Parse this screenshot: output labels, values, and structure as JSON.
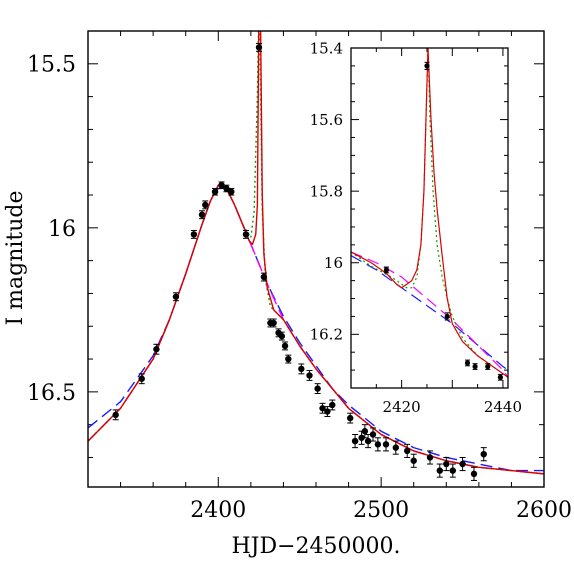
{
  "chart_data": [
    {
      "name": "main",
      "type": "scatter",
      "title": "",
      "xlabel": "HJD−2450000.",
      "ylabel": "I magnitude",
      "xlim": [
        2320,
        2600
      ],
      "ylim": [
        16.79,
        15.4
      ],
      "y_inverted": true,
      "x_ticks": [
        2400,
        2500,
        2600
      ],
      "y_ticks": [
        15.5,
        16,
        16.5
      ],
      "x_tick_labels": [
        "2400",
        "2500",
        "2600"
      ],
      "y_tick_labels": [
        "15.5",
        "16",
        "16.5"
      ],
      "grid": false,
      "legend": "none",
      "series": [
        {
          "kind": "points_with_errorbars",
          "color": "#000000",
          "points": [
            [
              2337,
              16.57,
              0.015
            ],
            [
              2353,
              16.46,
              0.015
            ],
            [
              2362,
              16.37,
              0.015
            ],
            [
              2374,
              16.21,
              0.012
            ],
            [
              2385,
              16.02,
              0.012
            ],
            [
              2390,
              15.96,
              0.012
            ],
            [
              2392,
              15.93,
              0.012
            ],
            [
              2398,
              15.89,
              0.01
            ],
            [
              2402,
              15.87,
              0.01
            ],
            [
              2405,
              15.88,
              0.01
            ],
            [
              2408,
              15.89,
              0.01
            ],
            [
              2417,
              16.02,
              0.012
            ],
            [
              2425,
              15.45,
              0.012
            ],
            [
              2428,
              16.15,
              0.012
            ],
            [
              2432,
              16.29,
              0.012
            ],
            [
              2434,
              16.29,
              0.012
            ],
            [
              2437,
              16.32,
              0.012
            ],
            [
              2439,
              16.33,
              0.012
            ],
            [
              2441,
              16.36,
              0.012
            ],
            [
              2443,
              16.4,
              0.012
            ],
            [
              2451,
              16.43,
              0.015
            ],
            [
              2456,
              16.45,
              0.015
            ],
            [
              2461,
              16.49,
              0.015
            ],
            [
              2464,
              16.55,
              0.015
            ],
            [
              2467,
              16.56,
              0.015
            ],
            [
              2470,
              16.54,
              0.015
            ],
            [
              2481,
              16.58,
              0.015
            ],
            [
              2484,
              16.65,
              0.02
            ],
            [
              2488,
              16.64,
              0.02
            ],
            [
              2490,
              16.62,
              0.02
            ],
            [
              2492,
              16.65,
              0.02
            ],
            [
              2495,
              16.63,
              0.02
            ],
            [
              2498,
              16.66,
              0.02
            ],
            [
              2503,
              16.66,
              0.02
            ],
            [
              2509,
              16.67,
              0.02
            ],
            [
              2516,
              16.68,
              0.02
            ],
            [
              2520,
              16.71,
              0.02
            ],
            [
              2530,
              16.7,
              0.02
            ],
            [
              2536,
              16.74,
              0.02
            ],
            [
              2540,
              16.72,
              0.02
            ],
            [
              2544,
              16.74,
              0.02
            ],
            [
              2550,
              16.72,
              0.02
            ],
            [
              2557,
              16.75,
              0.02
            ],
            [
              2563,
              16.69,
              0.02
            ]
          ]
        },
        {
          "kind": "model_curve_single_lens",
          "style": "dashed",
          "color": "#1a1aff",
          "x": [
            2320,
            2340,
            2360,
            2370,
            2380,
            2390,
            2395,
            2400,
            2405,
            2410,
            2415,
            2420,
            2425,
            2430,
            2440,
            2450,
            2460,
            2470,
            2480,
            2500,
            2520,
            2540,
            2560,
            2580,
            2600
          ],
          "y": [
            16.61,
            16.53,
            16.39,
            16.28,
            16.14,
            15.99,
            15.92,
            15.88,
            15.88,
            15.93,
            15.99,
            16.05,
            16.11,
            16.17,
            16.27,
            16.35,
            16.42,
            16.49,
            16.54,
            16.62,
            16.67,
            16.7,
            16.72,
            16.74,
            16.74
          ]
        },
        {
          "kind": "model_curve_binary_lens",
          "style": "dashed",
          "color": "#ff00ff",
          "x": [
            2320,
            2340,
            2360,
            2370,
            2380,
            2390,
            2395,
            2400,
            2405,
            2410,
            2415,
            2420,
            2425,
            2430,
            2440,
            2450,
            2460,
            2470,
            2480,
            2500,
            2520,
            2540,
            2560,
            2580,
            2600
          ],
          "y": [
            16.65,
            16.55,
            16.4,
            16.28,
            16.14,
            15.99,
            15.92,
            15.87,
            15.88,
            15.93,
            15.99,
            16.05,
            16.11,
            16.17,
            16.28,
            16.36,
            16.43,
            16.49,
            16.55,
            16.63,
            16.68,
            16.71,
            16.73,
            16.74,
            16.75
          ]
        },
        {
          "kind": "model_curve_with_spike",
          "style": "dotted",
          "color": "#00a000",
          "x": [
            2320,
            2340,
            2360,
            2370,
            2380,
            2390,
            2395,
            2400,
            2405,
            2410,
            2415,
            2420,
            2422,
            2424,
            2425,
            2426,
            2427,
            2429,
            2432,
            2440,
            2450,
            2460,
            2470,
            2480,
            2500,
            2520,
            2540,
            2560,
            2580,
            2600
          ],
          "y": [
            16.65,
            16.55,
            16.4,
            16.28,
            16.14,
            15.99,
            15.92,
            15.87,
            15.88,
            15.93,
            15.99,
            16.03,
            15.95,
            15.6,
            15.3,
            15.6,
            15.95,
            16.16,
            16.24,
            16.28,
            16.36,
            16.43,
            16.49,
            16.55,
            16.63,
            16.68,
            16.71,
            16.73,
            16.74,
            16.75
          ]
        },
        {
          "kind": "model_curve_with_spike",
          "style": "solid",
          "color": "#dd0000",
          "x": [
            2320,
            2340,
            2360,
            2370,
            2380,
            2390,
            2395,
            2400,
            2405,
            2410,
            2415,
            2419,
            2421,
            2423,
            2424,
            2425,
            2426,
            2427,
            2428,
            2430,
            2434,
            2440,
            2450,
            2460,
            2470,
            2480,
            2500,
            2520,
            2540,
            2560,
            2580,
            2600
          ],
          "y": [
            16.65,
            16.55,
            16.4,
            16.28,
            16.14,
            15.99,
            15.92,
            15.87,
            15.88,
            15.93,
            15.99,
            16.04,
            16.05,
            16.02,
            15.93,
            15.3,
            15.4,
            15.9,
            16.08,
            16.18,
            16.25,
            16.28,
            16.36,
            16.43,
            16.49,
            16.55,
            16.63,
            16.68,
            16.71,
            16.73,
            16.74,
            16.75
          ]
        }
      ]
    },
    {
      "name": "inset",
      "type": "scatter",
      "title": "",
      "xlabel": "",
      "ylabel": "",
      "xlim": [
        2410,
        2441
      ],
      "ylim": [
        16.35,
        15.4
      ],
      "y_inverted": true,
      "x_ticks": [
        2420,
        2430,
        2440
      ],
      "y_ticks": [
        15.4,
        15.6,
        15.8,
        16,
        16.2
      ],
      "x_tick_labels": [
        "2420",
        "",
        "2440"
      ],
      "y_tick_labels": [
        "15.4",
        "15.6",
        "15.8",
        "16",
        "16.2"
      ],
      "grid": false,
      "legend": "none",
      "series": [
        {
          "kind": "points_with_errorbars",
          "color": "#000000",
          "points": [
            [
              2417,
              16.02,
              0.008
            ],
            [
              2425,
              15.45,
              0.01
            ],
            [
              2429,
              16.15,
              0.01
            ],
            [
              2433,
              16.28,
              0.008
            ],
            [
              2434.5,
              16.29,
              0.008
            ],
            [
              2437,
              16.29,
              0.008
            ],
            [
              2439.5,
              16.32,
              0.008
            ]
          ]
        },
        {
          "kind": "model_curve_single_lens",
          "style": "dashed",
          "color": "#1a1aff",
          "x": [
            2410,
            2415,
            2420,
            2425,
            2430,
            2435,
            2440,
            2441
          ],
          "y": [
            15.98,
            16.02,
            16.07,
            16.12,
            16.17,
            16.23,
            16.29,
            16.3
          ]
        },
        {
          "kind": "model_curve_binary_lens",
          "style": "dashed",
          "color": "#ff00ff",
          "x": [
            2410,
            2415,
            2420,
            2425,
            2430,
            2435,
            2440,
            2441
          ],
          "y": [
            15.97,
            16.0,
            16.04,
            16.1,
            16.16,
            16.23,
            16.3,
            16.32
          ]
        },
        {
          "kind": "model_curve_with_spike",
          "style": "dotted",
          "color": "#00a000",
          "x": [
            2410,
            2414,
            2418,
            2420,
            2421,
            2422,
            2423,
            2423.8,
            2424.4,
            2424.8,
            2425.2,
            2425.6,
            2426.2,
            2427,
            2428,
            2429,
            2430,
            2432,
            2435,
            2440,
            2441
          ],
          "y": [
            15.97,
            16.01,
            16.04,
            16.06,
            16.07,
            16.07,
            16.04,
            15.95,
            15.8,
            15.6,
            15.4,
            15.6,
            15.8,
            15.95,
            16.04,
            16.1,
            16.15,
            16.21,
            16.26,
            16.31,
            16.32
          ]
        },
        {
          "kind": "model_curve_with_spike",
          "style": "solid",
          "color": "#dd0000",
          "x": [
            2410,
            2414,
            2417,
            2419,
            2420,
            2421,
            2422,
            2423,
            2423.8,
            2424.4,
            2424.8,
            2425.2,
            2425.8,
            2426.4,
            2427,
            2428,
            2429,
            2430,
            2432,
            2435,
            2440,
            2441
          ],
          "y": [
            15.97,
            16.0,
            16.03,
            16.06,
            16.07,
            16.06,
            16.05,
            16.02,
            15.95,
            15.8,
            15.6,
            15.4,
            15.6,
            15.75,
            15.85,
            15.98,
            16.1,
            16.17,
            16.22,
            16.26,
            16.31,
            16.32
          ]
        }
      ]
    }
  ]
}
